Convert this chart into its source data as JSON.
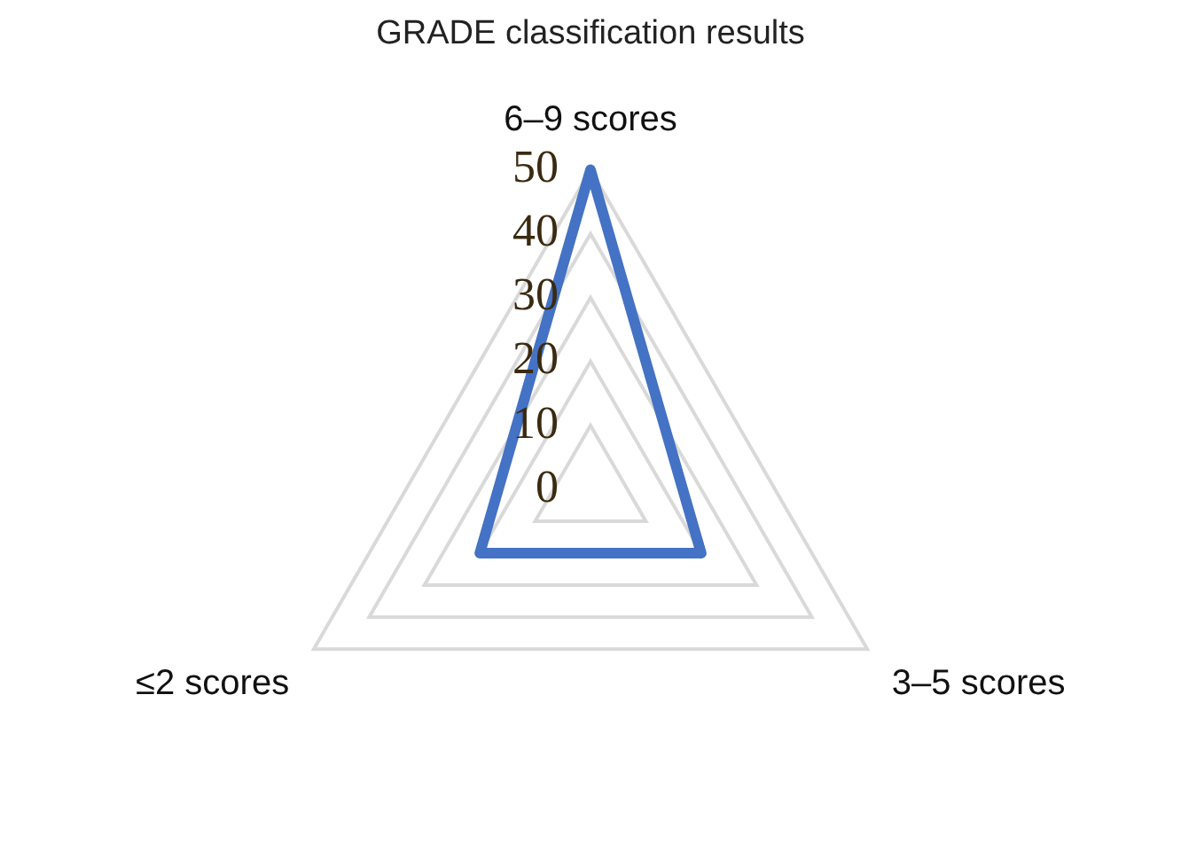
{
  "chart_data": {
    "type": "radar",
    "title": "GRADE classification results",
    "categories": [
      "6–9 scores",
      "3–5 scores",
      "≤2 scores"
    ],
    "series": [
      {
        "color": "#4472c4",
        "values": [
          50,
          20,
          20
        ]
      }
    ],
    "ylim": [
      0,
      50
    ],
    "yticks": [
      0,
      10,
      20,
      30,
      40,
      50
    ],
    "grid": true,
    "legend": false,
    "marker": "none"
  }
}
